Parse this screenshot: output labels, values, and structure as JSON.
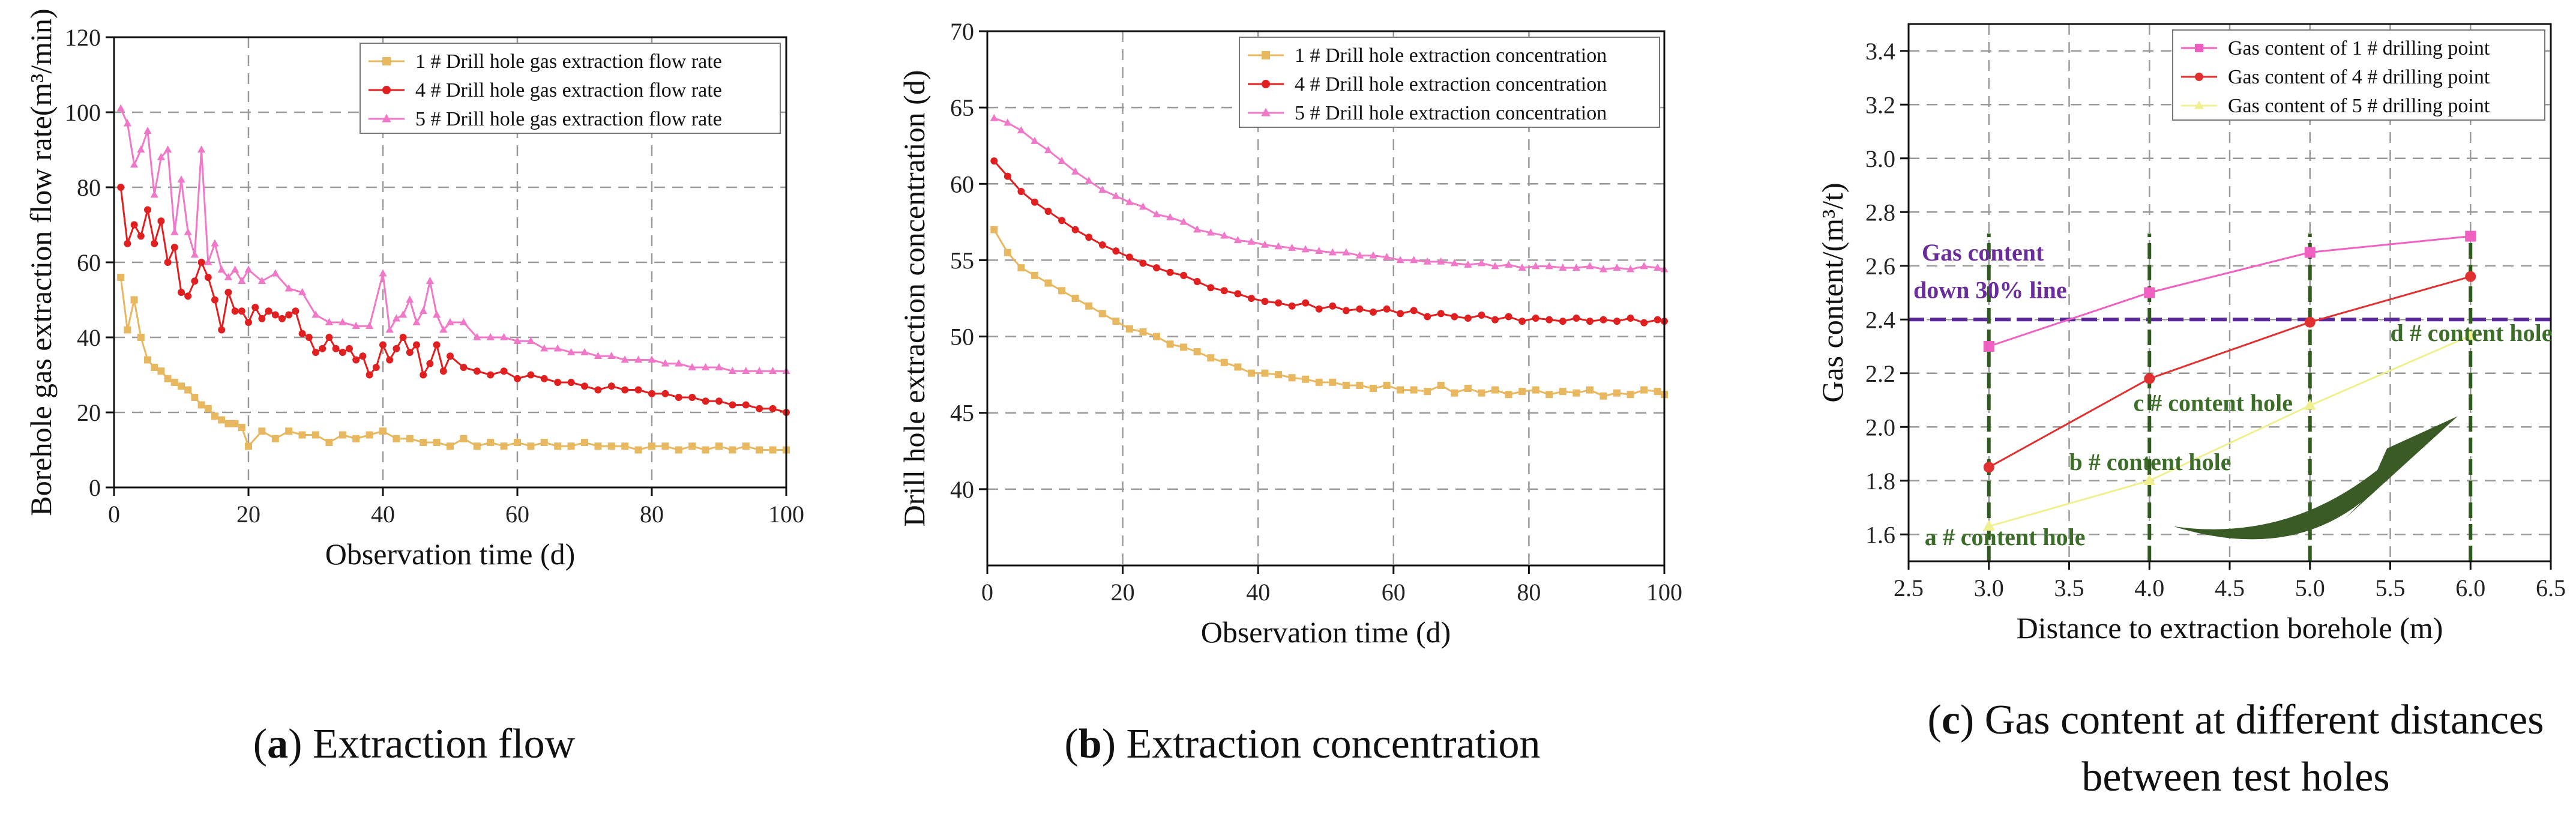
{
  "chart_data": [
    {
      "id": "a",
      "type": "line",
      "xlabel": "Observation time (d)",
      "ylabel": "Borehole gas extraction flow rate(m³/min)",
      "xlim": [
        0,
        100
      ],
      "ylim": [
        0,
        120
      ],
      "xticks": [
        0,
        20,
        40,
        60,
        80,
        100
      ],
      "yticks": [
        0,
        20,
        40,
        60,
        80,
        100,
        120
      ],
      "caption_letter": "a",
      "caption_text": " Extraction flow",
      "caption_open": "(",
      "caption_close": ")",
      "series": [
        {
          "name": "1 # Drill hole gas extraction flow rate",
          "color": "#e8b860",
          "marker": "square",
          "x": [
            1,
            2,
            3,
            4,
            5,
            6,
            7,
            8,
            9,
            10,
            11,
            12,
            13,
            14,
            15,
            16,
            17,
            18,
            19,
            20,
            22,
            24,
            26,
            28,
            30,
            32,
            34,
            36,
            38,
            40,
            42,
            44,
            46,
            48,
            50,
            52,
            54,
            56,
            58,
            60,
            62,
            64,
            66,
            68,
            70,
            72,
            74,
            76,
            78,
            80,
            82,
            84,
            86,
            88,
            90,
            92,
            94,
            96,
            98,
            100
          ],
          "y": [
            56,
            42,
            50,
            40,
            34,
            32,
            31,
            29,
            28,
            27,
            26,
            24,
            22,
            21,
            19,
            18,
            17,
            17,
            16,
            11,
            15,
            13,
            15,
            14,
            14,
            12,
            14,
            13,
            14,
            15,
            13,
            13,
            12,
            12,
            11,
            13,
            11,
            12,
            11,
            12,
            11,
            12,
            11,
            11,
            12,
            11,
            11,
            11,
            10,
            11,
            11,
            10,
            11,
            10,
            11,
            10,
            11,
            10,
            10,
            10
          ]
        },
        {
          "name": "4 # Drill hole gas extraction flow rate",
          "color": "#e02020",
          "marker": "circle",
          "x": [
            1,
            2,
            3,
            4,
            5,
            6,
            7,
            8,
            9,
            10,
            11,
            12,
            13,
            14,
            15,
            16,
            17,
            18,
            19,
            20,
            21,
            22,
            23,
            24,
            25,
            26,
            27,
            28,
            29,
            30,
            31,
            32,
            33,
            34,
            35,
            36,
            37,
            38,
            39,
            40,
            41,
            42,
            43,
            44,
            45,
            46,
            47,
            48,
            49,
            50,
            52,
            54,
            56,
            58,
            60,
            62,
            64,
            66,
            68,
            70,
            72,
            74,
            76,
            78,
            80,
            82,
            84,
            86,
            88,
            90,
            92,
            94,
            96,
            98,
            100
          ],
          "y": [
            80,
            65,
            70,
            67,
            74,
            65,
            71,
            60,
            64,
            52,
            51,
            55,
            60,
            56,
            50,
            42,
            52,
            47,
            47,
            44,
            48,
            45,
            47,
            46,
            45,
            46,
            47,
            41,
            40,
            36,
            37,
            40,
            37,
            36,
            37,
            34,
            35,
            30,
            32,
            38,
            34,
            37,
            40,
            36,
            38,
            30,
            33,
            38,
            31,
            35,
            32,
            31,
            30,
            31,
            29,
            30,
            29,
            28,
            28,
            27,
            26,
            27,
            26,
            26,
            25,
            25,
            24,
            24,
            23,
            23,
            22,
            22,
            21,
            21,
            20
          ]
        },
        {
          "name": "5 # Drill hole gas extraction flow rate",
          "color": "#f078c8",
          "marker": "triangle",
          "x": [
            1,
            2,
            3,
            4,
            5,
            6,
            7,
            8,
            9,
            10,
            11,
            12,
            13,
            14,
            15,
            16,
            17,
            18,
            19,
            20,
            22,
            24,
            26,
            28,
            30,
            32,
            34,
            36,
            38,
            40,
            41,
            42,
            43,
            44,
            45,
            46,
            47,
            48,
            49,
            50,
            52,
            54,
            56,
            58,
            60,
            62,
            64,
            66,
            68,
            70,
            72,
            74,
            76,
            78,
            80,
            82,
            84,
            86,
            88,
            90,
            92,
            94,
            96,
            98,
            100
          ],
          "y": [
            101,
            97,
            86,
            90,
            95,
            78,
            88,
            90,
            68,
            82,
            68,
            62,
            90,
            60,
            65,
            58,
            56,
            58,
            55,
            58,
            55,
            57,
            53,
            52,
            46,
            44,
            44,
            43,
            43,
            57,
            42,
            45,
            46,
            50,
            44,
            47,
            55,
            46,
            42,
            44,
            44,
            40,
            40,
            40,
            39,
            39,
            37,
            37,
            36,
            36,
            35,
            35,
            34,
            34,
            34,
            33,
            33,
            32,
            32,
            32,
            31,
            31,
            31,
            31,
            31
          ]
        }
      ]
    },
    {
      "id": "b",
      "type": "line",
      "xlabel": "Observation time (d)",
      "ylabel": "Drill hole extraction concentration   (d)",
      "xlim": [
        0,
        100
      ],
      "ylim": [
        35,
        70
      ],
      "xticks": [
        0,
        20,
        40,
        60,
        80,
        100
      ],
      "yticks": [
        40,
        45,
        50,
        55,
        60,
        65,
        70
      ],
      "caption_letter": "b",
      "caption_text": " Extraction concentration",
      "caption_open": "(",
      "caption_close": ")",
      "series": [
        {
          "name": "1 # Drill hole extraction concentration",
          "color": "#e8b860",
          "marker": "square",
          "x": [
            1,
            3,
            5,
            7,
            9,
            11,
            13,
            15,
            17,
            19,
            21,
            23,
            25,
            27,
            29,
            31,
            33,
            35,
            37,
            39,
            41,
            43,
            45,
            47,
            49,
            51,
            53,
            55,
            57,
            59,
            61,
            63,
            65,
            67,
            69,
            71,
            73,
            75,
            77,
            79,
            81,
            83,
            85,
            87,
            89,
            91,
            93,
            95,
            97,
            99,
            100
          ],
          "y": [
            57,
            55.5,
            54.5,
            54,
            53.5,
            53,
            52.5,
            52,
            51.5,
            51,
            50.5,
            50.3,
            50,
            49.5,
            49.3,
            49,
            48.6,
            48.3,
            48,
            47.6,
            47.6,
            47.5,
            47.3,
            47.2,
            47,
            47,
            46.8,
            46.8,
            46.6,
            46.8,
            46.5,
            46.5,
            46.4,
            46.8,
            46.3,
            46.6,
            46.3,
            46.5,
            46.2,
            46.4,
            46.5,
            46.2,
            46.4,
            46.3,
            46.5,
            46.1,
            46.3,
            46.2,
            46.5,
            46.4,
            46.2
          ]
        },
        {
          "name": "4 # Drill hole extraction concentration",
          "color": "#e02020",
          "marker": "circle",
          "x": [
            1,
            3,
            5,
            7,
            9,
            11,
            13,
            15,
            17,
            19,
            21,
            23,
            25,
            27,
            29,
            31,
            33,
            35,
            37,
            39,
            41,
            43,
            45,
            47,
            49,
            51,
            53,
            55,
            57,
            59,
            61,
            63,
            65,
            67,
            69,
            71,
            73,
            75,
            77,
            79,
            81,
            83,
            85,
            87,
            89,
            91,
            93,
            95,
            97,
            99,
            100
          ],
          "y": [
            61.5,
            60.5,
            59.5,
            58.8,
            58.2,
            57.6,
            57,
            56.5,
            56,
            55.6,
            55.2,
            54.8,
            54.5,
            54.2,
            54,
            53.6,
            53.2,
            53,
            52.8,
            52.5,
            52.3,
            52.2,
            52,
            52.2,
            51.8,
            52,
            51.7,
            51.8,
            51.6,
            51.8,
            51.5,
            51.7,
            51.3,
            51.5,
            51.3,
            51.2,
            51.4,
            51.1,
            51.3,
            51,
            51.2,
            51.1,
            51,
            51.2,
            51,
            51.1,
            51,
            51.2,
            50.9,
            51.1,
            51
          ]
        },
        {
          "name": "5 # Drill hole extraction concentration",
          "color": "#f078c8",
          "marker": "triangle",
          "x": [
            1,
            3,
            5,
            7,
            9,
            11,
            13,
            15,
            17,
            19,
            21,
            23,
            25,
            27,
            29,
            31,
            33,
            35,
            37,
            39,
            41,
            43,
            45,
            47,
            49,
            51,
            53,
            55,
            57,
            59,
            61,
            63,
            65,
            67,
            69,
            71,
            73,
            75,
            77,
            79,
            81,
            83,
            85,
            87,
            89,
            91,
            93,
            95,
            97,
            99,
            100
          ],
          "y": [
            64.3,
            64,
            63.5,
            62.8,
            62.2,
            61.5,
            60.8,
            60.2,
            59.6,
            59.2,
            58.8,
            58.5,
            58,
            57.8,
            57.5,
            57,
            56.8,
            56.6,
            56.3,
            56.2,
            56,
            55.9,
            55.8,
            55.7,
            55.6,
            55.5,
            55.5,
            55.3,
            55.3,
            55.2,
            55,
            55,
            54.9,
            54.9,
            54.8,
            54.7,
            54.8,
            54.6,
            54.7,
            54.5,
            54.6,
            54.6,
            54.5,
            54.5,
            54.6,
            54.4,
            54.5,
            54.4,
            54.6,
            54.5,
            54.4
          ]
        }
      ]
    },
    {
      "id": "c",
      "type": "line",
      "xlabel": "Distance to extraction borehole (m)",
      "ylabel": "Gas content/(m³/t)",
      "xlim": [
        2.5,
        6.5
      ],
      "ylim": [
        1.5,
        3.5
      ],
      "xticks": [
        2.5,
        3.0,
        3.5,
        4.0,
        4.5,
        5.0,
        5.5,
        6.0,
        6.5
      ],
      "yticks": [
        1.6,
        1.8,
        2.0,
        2.2,
        2.4,
        2.6,
        2.8,
        3.0,
        3.2,
        3.4
      ],
      "caption_letter": "c",
      "caption_text": " Gas content at different distances",
      "caption_line2": "between test holes",
      "caption_open": "(",
      "caption_close": ")",
      "reference_line": {
        "y": 2.4,
        "label_line1": "Gas content",
        "label_line2": "down 30% line"
      },
      "annotations": [
        "a # content hole",
        "b # content hole",
        "c # content hole",
        "d # content hole"
      ],
      "series": [
        {
          "name": "Gas content of 1 # drilling point",
          "color": "#f060c0",
          "marker": "square",
          "x": [
            3.0,
            4.0,
            5.0,
            6.0
          ],
          "y": [
            2.3,
            2.5,
            2.65,
            2.71
          ]
        },
        {
          "name": "Gas content of 4 # drilling point",
          "color": "#e03030",
          "marker": "circle",
          "x": [
            3.0,
            4.0,
            5.0,
            6.0
          ],
          "y": [
            1.85,
            2.18,
            2.39,
            2.56
          ]
        },
        {
          "name": "Gas content of 5 # drilling point",
          "color": "#f0f090",
          "marker": "triangle",
          "x": [
            3.0,
            4.0,
            5.0,
            6.0
          ],
          "y": [
            1.63,
            1.8,
            2.08,
            2.34
          ]
        }
      ]
    }
  ]
}
